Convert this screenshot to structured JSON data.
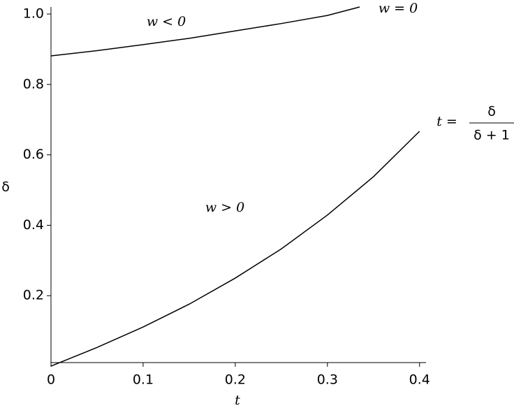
{
  "chart_data": {
    "type": "line",
    "xlabel": "t",
    "ylabel": "δ",
    "xlim": [
      0,
      0.407
    ],
    "ylim": [
      0.01,
      1.02
    ],
    "xticks": [
      0,
      0.1,
      0.2,
      0.3,
      0.4
    ],
    "yticks": [
      0.2,
      0.4,
      0.6,
      0.8,
      {
        "value": 1,
        "label": "1.0"
      }
    ],
    "series": [
      {
        "color": "#000000",
        "x": [
          0,
          0.05,
          0.1,
          0.15,
          0.2,
          0.25,
          0.3,
          0.335
        ],
        "values": [
          0.881,
          0.896,
          0.913,
          0.931,
          0.952,
          0.973,
          0.996,
          1.02
        ]
      },
      {
        "color": "#000000",
        "x": [
          0,
          0.05,
          0.1,
          0.15,
          0.2,
          0.25,
          0.3,
          0.35,
          0.4
        ],
        "values": [
          0,
          0.053,
          0.111,
          0.176,
          0.25,
          0.333,
          0.429,
          0.538,
          0.667
        ]
      }
    ],
    "annotations": [
      "w < 0",
      "w = 0",
      "w > 0",
      "t =",
      "δ",
      "δ + 1"
    ]
  }
}
